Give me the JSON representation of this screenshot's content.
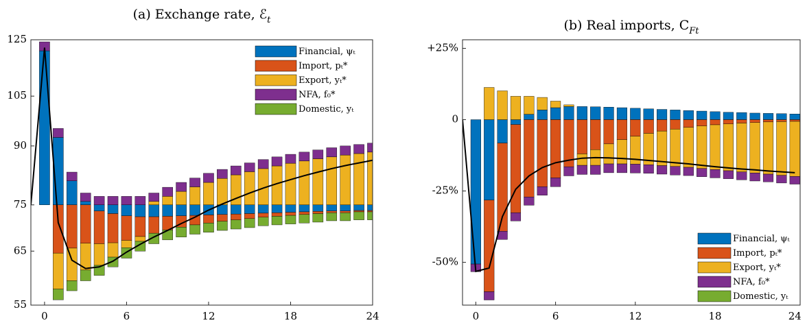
{
  "chart_data": [
    {
      "type": "bar",
      "title": "(a) Exchange rate, ℰ",
      "title_subscript": "t",
      "log_scale": true,
      "base": 75,
      "legend": "top-right",
      "grid": false,
      "x": [
        0,
        1,
        2,
        3,
        4,
        5,
        6,
        7,
        8,
        9,
        10,
        11,
        12,
        13,
        14,
        15,
        16,
        17,
        18,
        19,
        20,
        21,
        22,
        23,
        24
      ],
      "xlim": [
        -1,
        24
      ],
      "xticks": [
        0,
        6,
        12,
        18,
        24
      ],
      "ylim": [
        55,
        125
      ],
      "yticks": [
        55,
        65,
        75,
        90,
        105,
        125
      ],
      "series": [
        {
          "name": "Financial, ψₜ",
          "color": "#0072BD",
          "values": [
            45.8,
            17.4,
            5.8,
            0.8,
            -1.4,
            -2.0,
            -2.5,
            -2.7,
            -2.7,
            -2.6,
            -2.5,
            -2.4,
            -2.3,
            -2.2,
            -2.1,
            -2.0,
            -1.9,
            -1.8,
            -1.7,
            -1.6,
            -1.5,
            -1.4,
            -1.4,
            -1.3,
            -1.3
          ]
        },
        {
          "name": "Import, pₜ*",
          "color": "#D95319",
          "values": [
            0,
            -10.4,
            -9.4,
            -8.4,
            -7.1,
            -6.3,
            -5.3,
            -4.3,
            -3.6,
            -3.0,
            -2.5,
            -2.1,
            -1.8,
            -1.5,
            -1.3,
            -1.1,
            -0.9,
            -0.8,
            -0.7,
            -0.6,
            -0.5,
            -0.4,
            -0.4,
            -0.3,
            -0.3
          ]
        },
        {
          "name": "Export, yₜ*",
          "color": "#EDB120",
          "values": [
            0,
            -6.8,
            -6.3,
            -5.3,
            -4.3,
            -2.9,
            -1.5,
            -1.0,
            0.8,
            2.0,
            3.2,
            4.3,
            5.4,
            6.4,
            7.3,
            8.1,
            8.9,
            9.6,
            10.3,
            10.9,
            11.5,
            12.0,
            12.5,
            12.9,
            13.3
          ]
        },
        {
          "name": "NFA, f₀*",
          "color": "#7E2F8E",
          "values": [
            3.4,
            2.6,
            2.2,
            2.0,
            2.0,
            2.0,
            2.0,
            2.0,
            2.0,
            2.2,
            2.2,
            2.2,
            2.3,
            2.3,
            2.3,
            2.3,
            2.4,
            2.4,
            2.4,
            2.4,
            2.4,
            2.5,
            2.5,
            2.5,
            2.5
          ]
        },
        {
          "name": "Domestic, yₜ",
          "color": "#77AC30",
          "values": [
            0,
            -1.9,
            -1.8,
            -2.0,
            -1.9,
            -1.9,
            -2.1,
            -2.0,
            -2.2,
            -2.1,
            -2.1,
            -2.0,
            -2.0,
            -2.0,
            -2.0,
            -2.0,
            -1.9,
            -1.9,
            -1.9,
            -1.9,
            -1.9,
            -1.8,
            -1.8,
            -1.8,
            -1.8
          ]
        }
      ],
      "line": {
        "color": "#000000",
        "x": [
          -1,
          0,
          1,
          2,
          3,
          4,
          5,
          6,
          7,
          8,
          9,
          10,
          11,
          12,
          13,
          14,
          15,
          16,
          17,
          18,
          19,
          20,
          21,
          22,
          23,
          24
        ],
        "values": [
          75,
          122,
          71,
          63.2,
          61.6,
          61.9,
          63,
          64.8,
          66.4,
          67.9,
          69.3,
          70.8,
          72.2,
          73.8,
          75.2,
          76.5,
          77.8,
          79,
          80.1,
          81.1,
          82.1,
          83,
          83.9,
          84.7,
          85.4,
          86.1
        ]
      }
    },
    {
      "type": "bar",
      "title": "(b) Real imports, C",
      "title_subscript": "Ft",
      "log_scale": false,
      "legend": "bottom-right",
      "grid": false,
      "x": [
        0,
        1,
        2,
        3,
        4,
        5,
        6,
        7,
        8,
        9,
        10,
        11,
        12,
        13,
        14,
        15,
        16,
        17,
        18,
        19,
        20,
        21,
        22,
        23,
        24
      ],
      "xlim": [
        -1,
        24.4
      ],
      "xticks": [
        0,
        6,
        12,
        18,
        24
      ],
      "ylim": [
        -65,
        28
      ],
      "yticks": [
        {
          "value": 25,
          "label": "+25%"
        },
        0,
        {
          "value": -25,
          "label": "-25%"
        },
        {
          "value": -50,
          "label": "-50%"
        }
      ],
      "series": [
        {
          "name": "Financial, ψₜ",
          "color": "#0072BD",
          "values": [
            -50.6,
            -28.2,
            -8.2,
            -1.7,
            1.9,
            3.4,
            4.2,
            4.6,
            4.6,
            4.5,
            4.4,
            4.2,
            4.0,
            3.8,
            3.6,
            3.4,
            3.2,
            3.0,
            2.8,
            2.6,
            2.5,
            2.3,
            2.2,
            2.1,
            2.0
          ]
        },
        {
          "name": "Import, pₜ*",
          "color": "#D95319",
          "values": [
            0,
            -32.1,
            -30.9,
            -30.9,
            -27.1,
            -23.5,
            -20.4,
            -16.5,
            -12.0,
            -10.5,
            -8.5,
            -7.0,
            -5.8,
            -4.8,
            -4.0,
            -3.3,
            -2.7,
            -2.2,
            -1.8,
            -1.5,
            -1.2,
            -1.0,
            -0.8,
            -0.7,
            -0.6
          ]
        },
        {
          "name": "Export, yₜ*",
          "color": "#EDB120",
          "values": [
            0,
            11.3,
            10.1,
            8.2,
            6.3,
            4.4,
            2.3,
            0.6,
            -4.0,
            -5.5,
            -7.0,
            -8.5,
            -9.8,
            -11.0,
            -12.1,
            -13.1,
            -14.0,
            -14.9,
            -15.7,
            -16.4,
            -17.1,
            -17.7,
            -18.3,
            -18.8,
            -19.3
          ]
        },
        {
          "name": "NFA, f₀*",
          "color": "#7E2F8E",
          "values": [
            -2.7,
            -2.9,
            -2.9,
            -2.9,
            -2.9,
            -3.0,
            -3.1,
            -3.2,
            -3.2,
            -3.2,
            -3.1,
            -3.1,
            -3.1,
            -3.0,
            -3.0,
            -3.0,
            -2.9,
            -2.9,
            -2.9,
            -2.8,
            -2.8,
            -2.8,
            -2.7,
            -2.7,
            -2.7
          ]
        },
        {
          "name": "Domestic, yₜ",
          "color": "#77AC30",
          "values": [
            0,
            0,
            0,
            0,
            0,
            0,
            0,
            0,
            0,
            0,
            0,
            0,
            0,
            0,
            0,
            0,
            0,
            0,
            0,
            0,
            0,
            0,
            0,
            0,
            0
          ]
        }
      ],
      "line": {
        "color": "#000000",
        "x": [
          -1,
          0,
          1,
          2,
          3,
          4,
          5,
          6,
          7,
          8,
          9,
          10,
          11,
          12,
          13,
          14,
          15,
          16,
          17,
          18,
          19,
          20,
          21,
          22,
          23,
          24
        ],
        "values": [
          0,
          -53.2,
          -52,
          -34,
          -24.4,
          -19.7,
          -16.8,
          -15.1,
          -14.2,
          -13.5,
          -13.3,
          -13.4,
          -13.6,
          -13.9,
          -14.3,
          -14.7,
          -15.1,
          -15.5,
          -16.0,
          -16.5,
          -16.9,
          -17.3,
          -17.6,
          -18.0,
          -18.3,
          -18.6
        ]
      }
    }
  ]
}
